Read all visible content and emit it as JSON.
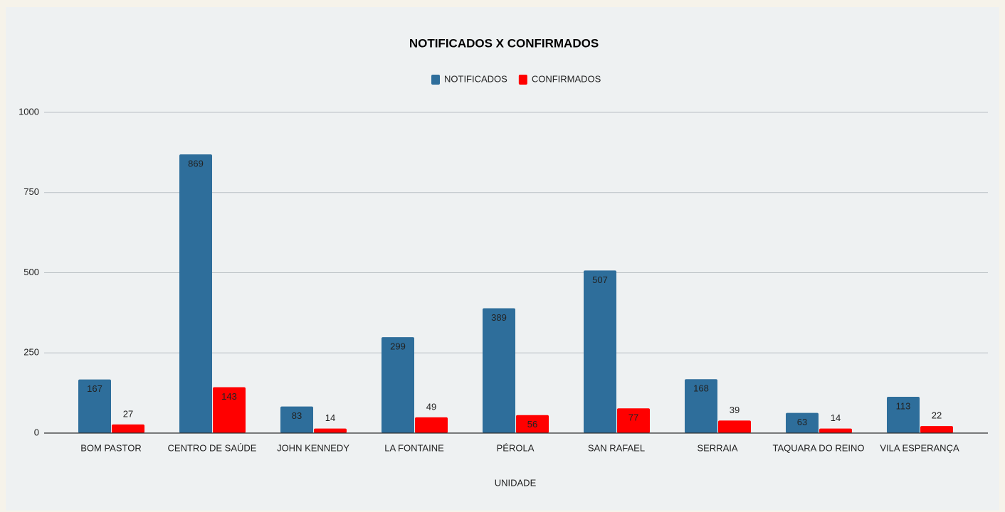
{
  "chart_data": {
    "type": "bar",
    "title": "NOTIFICADOS X CONFIRMADOS",
    "x_label": "UNIDADE",
    "categories": [
      "BOM PASTOR",
      "CENTRO DE SAÚDE",
      "JOHN KENNEDY",
      "LA FONTAINE",
      "PÉROLA",
      "SAN RAFAEL",
      "SERRAIA",
      "TAQUARA DO REINO",
      "VILA ESPERANÇA"
    ],
    "series": [
      {
        "name": "NOTIFICADOS",
        "color": "#2e6e9b",
        "values": [
          167,
          869,
          83,
          299,
          389,
          507,
          168,
          63,
          113
        ]
      },
      {
        "name": "CONFIRMADOS",
        "color": "#ff0000",
        "values": [
          27,
          143,
          14,
          49,
          56,
          77,
          39,
          14,
          22
        ]
      }
    ],
    "ylim": [
      0,
      1000
    ],
    "yticks": [
      0,
      250,
      500,
      750,
      1000
    ],
    "grid": true,
    "legend": "top"
  }
}
